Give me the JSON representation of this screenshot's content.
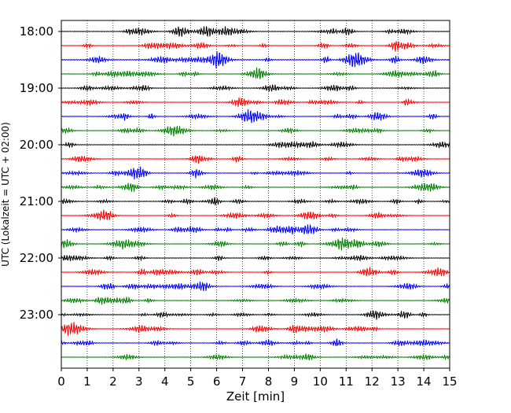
{
  "chart_data": {
    "type": "line",
    "title": "",
    "xlabel": "Zeit  [min]",
    "ylabel": "UTC (Lokalzeit = UTC + 02:00)",
    "xlim": [
      0,
      15
    ],
    "x_ticks": [
      "0",
      "1",
      "2",
      "3",
      "4",
      "5",
      "6",
      "7",
      "8",
      "9",
      "10",
      "11",
      "12",
      "13",
      "14",
      "15"
    ],
    "y_tick_labels": [
      "18:00",
      "19:00",
      "20:00",
      "21:00",
      "22:00",
      "23:00"
    ],
    "trace_start": "18:00",
    "trace_interval_min": 15,
    "trace_count": 24,
    "color_cycle": [
      "#000000",
      "#ff0000",
      "#0000ff",
      "#007f00"
    ],
    "grid": "vertical dotted",
    "legend": "none"
  }
}
